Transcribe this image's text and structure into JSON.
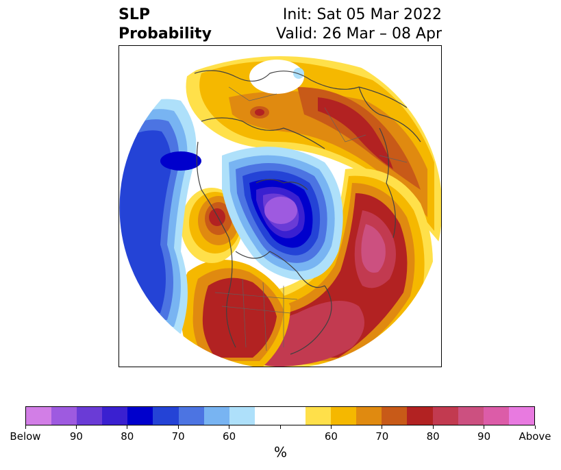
{
  "title": {
    "left_line1": "SLP",
    "left_line2": "Probability",
    "right_line1": "Init: Sat 05 Mar 2022",
    "right_line2": "Valid: 26 Mar – 08 Apr"
  },
  "colorbar": {
    "unit": "%",
    "colors": [
      "#d27ee6",
      "#9e5ae0",
      "#6a3bd6",
      "#3a20d0",
      "#0000cc",
      "#2443d6",
      "#4c74e2",
      "#78b4f2",
      "#aee0fa",
      "#ffffff",
      "#ffffff",
      "#ffe04a",
      "#f5b800",
      "#e08a10",
      "#c85a18",
      "#b22222",
      "#c23a50",
      "#cc5080",
      "#dc5ca8",
      "#e87ae0"
    ],
    "tick_labels": [
      "Below",
      "90",
      "80",
      "70",
      "60",
      "",
      "60",
      "70",
      "80",
      "90",
      "Above"
    ]
  },
  "map": {
    "projection": "north-polar-stereographic",
    "features": [
      "coastlines",
      "country-borders",
      "state-province-borders"
    ],
    "anomaly_regions": [
      {
        "name": "north-pacific-low",
        "sign": "below",
        "max_level": "70"
      },
      {
        "name": "arctic-low",
        "sign": "below",
        "max_level": "90"
      },
      {
        "name": "us-high",
        "sign": "above",
        "max_level": "80"
      },
      {
        "name": "atlantic-high",
        "sign": "above",
        "max_level": "90"
      },
      {
        "name": "scandinavia-high",
        "sign": "above",
        "max_level": "80"
      },
      {
        "name": "siberia-high",
        "sign": "above",
        "max_level": "80"
      },
      {
        "name": "alaska-high",
        "sign": "above",
        "max_level": "80"
      }
    ]
  }
}
